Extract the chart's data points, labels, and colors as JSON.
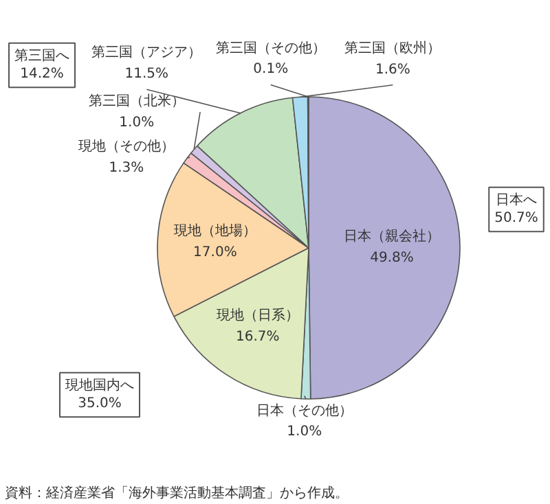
{
  "chart_data": {
    "type": "pie",
    "categories": [
      "日本（親会社）",
      "日本（その他）",
      "現地（日系）",
      "現地（地場）",
      "現地（その他）",
      "第三国（北米）",
      "第三国（アジア）",
      "第三国（欧州）",
      "第三国（その他）"
    ],
    "values": [
      49.8,
      1.0,
      16.7,
      17.0,
      1.3,
      1.0,
      11.5,
      1.6,
      0.1
    ],
    "colors": [
      "#b3aed6",
      "#b9e3e0",
      "#e0ebbf",
      "#fdd8a8",
      "#f6c0c4",
      "#d2c4e4",
      "#c3e2bf",
      "#a9dcf2",
      "#d8d4ea"
    ],
    "value_labels": [
      "49.8%",
      "1.0%",
      "16.7%",
      "17.0%",
      "1.3%",
      "1.0%",
      "11.5%",
      "1.6%",
      "0.1%"
    ],
    "annotations": [
      "第三国へ\n14.2%",
      "日本へ\n50.7%",
      "現地国内へ\n35.0%",
      "資料：経済産業省「海外事業活動基本調査」から作成。"
    ],
    "legend": false
  }
}
